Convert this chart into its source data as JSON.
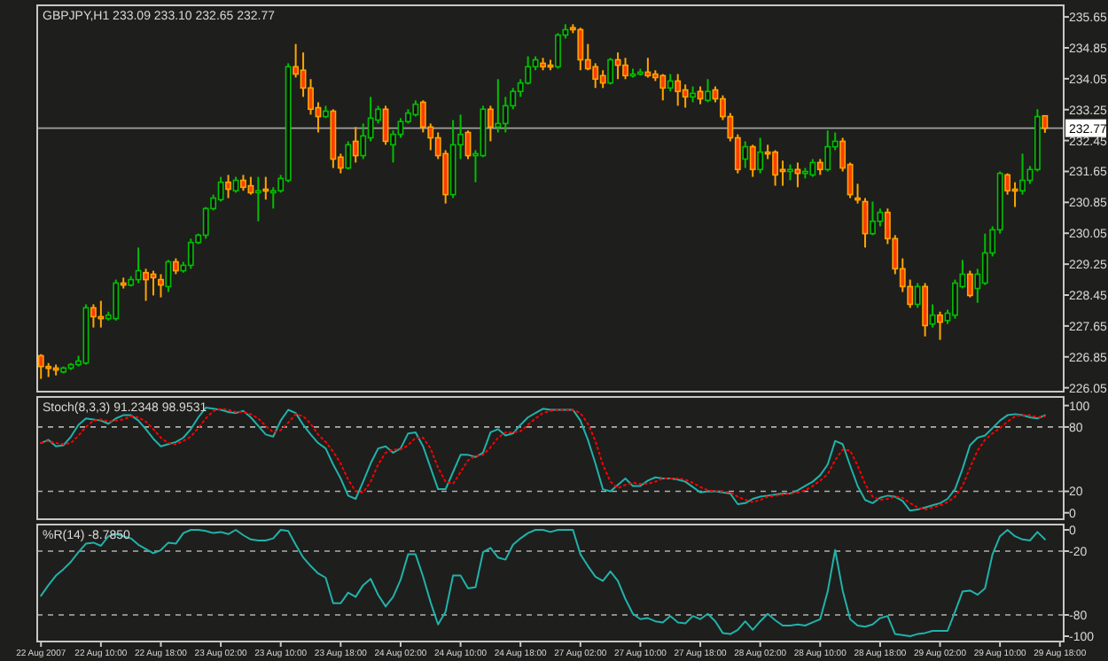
{
  "chart_data": [
    {
      "type": "candlestick",
      "title": "GBPJPY,H1 233.09 233.10 232.65 232.77",
      "categories": [
        null,
        null,
        null,
        null,
        null,
        null,
        null,
        null,
        null,
        null,
        null,
        null,
        null,
        null,
        null,
        null,
        null,
        null,
        null,
        null,
        null,
        null,
        null,
        null,
        null,
        null,
        null,
        null,
        null,
        null,
        null,
        null,
        null,
        null,
        null,
        null,
        null,
        null,
        null,
        null,
        null,
        null,
        null,
        null,
        null,
        null,
        null,
        null,
        null,
        null,
        null,
        null,
        null,
        null,
        null,
        null,
        null,
        null,
        null,
        null,
        null,
        null,
        null,
        null,
        null,
        null,
        null,
        null,
        null,
        null,
        null,
        null,
        null,
        null,
        null,
        null,
        null,
        null,
        null,
        null,
        null,
        null,
        null,
        null,
        null,
        null,
        null,
        null,
        null,
        null,
        null,
        null,
        null,
        null,
        null,
        null,
        null,
        null,
        null,
        null,
        null,
        null,
        null,
        null,
        null,
        null,
        null,
        null,
        null,
        null,
        null,
        null,
        null,
        null,
        null,
        null,
        null,
        null,
        null,
        null,
        null,
        null,
        null,
        null,
        null,
        null,
        null,
        null,
        null,
        null,
        null,
        null,
        null,
        null,
        null,
        null,
        null
      ],
      "ohlc": [
        [
          226.88,
          226.92,
          226.28,
          226.6
        ],
        [
          226.6,
          226.69,
          226.33,
          226.56
        ],
        [
          226.56,
          226.65,
          226.37,
          226.51
        ],
        [
          226.46,
          226.6,
          226.42,
          226.56
        ],
        [
          226.56,
          226.69,
          226.51,
          226.65
        ],
        [
          226.65,
          226.88,
          226.6,
          226.74
        ],
        [
          226.69,
          228.21,
          226.65,
          228.12
        ],
        [
          228.12,
          228.21,
          227.61,
          227.89
        ],
        [
          227.89,
          228.3,
          227.61,
          227.84
        ],
        [
          227.84,
          228.02,
          227.79,
          227.93
        ],
        [
          227.84,
          228.85,
          227.79,
          228.76
        ],
        [
          228.76,
          228.9,
          228.62,
          228.71
        ],
        [
          228.71,
          228.94,
          228.67,
          228.85
        ],
        [
          228.85,
          229.68,
          228.76,
          229.08
        ],
        [
          229.03,
          229.13,
          228.3,
          228.85
        ],
        [
          228.99,
          229.08,
          228.44,
          228.9
        ],
        [
          228.85,
          228.99,
          228.39,
          228.71
        ],
        [
          228.67,
          229.36,
          228.53,
          229.31
        ],
        [
          229.31,
          229.4,
          228.99,
          229.08
        ],
        [
          229.08,
          229.31,
          229.03,
          229.22
        ],
        [
          229.22,
          229.91,
          229.13,
          229.81
        ],
        [
          229.81,
          230.04,
          229.77,
          230.0
        ],
        [
          230.0,
          230.73,
          229.91,
          230.69
        ],
        [
          230.69,
          231.05,
          230.64,
          230.96
        ],
        [
          230.92,
          231.51,
          230.87,
          231.37
        ],
        [
          231.37,
          231.56,
          230.96,
          231.19
        ],
        [
          231.15,
          231.51,
          231.1,
          231.42
        ],
        [
          231.42,
          231.56,
          231.15,
          231.24
        ],
        [
          231.28,
          231.51,
          231.05,
          231.1
        ],
        [
          231.1,
          231.51,
          230.36,
          231.15
        ],
        [
          231.19,
          231.51,
          230.92,
          231.15
        ],
        [
          231.1,
          231.24,
          230.69,
          231.15
        ],
        [
          231.15,
          231.56,
          231.1,
          231.47
        ],
        [
          231.42,
          234.45,
          231.37,
          234.36
        ],
        [
          234.36,
          234.95,
          234.08,
          234.17
        ],
        [
          234.27,
          234.73,
          233.58,
          233.81
        ],
        [
          233.81,
          234.04,
          233.12,
          233.26
        ],
        [
          233.3,
          233.44,
          232.66,
          233.07
        ],
        [
          233.07,
          233.35,
          233.03,
          233.21
        ],
        [
          233.21,
          233.26,
          231.74,
          231.97
        ],
        [
          232.02,
          232.11,
          231.6,
          231.74
        ],
        [
          231.74,
          232.43,
          231.7,
          232.34
        ],
        [
          232.43,
          232.8,
          231.88,
          232.06
        ],
        [
          232.06,
          232.89,
          231.97,
          232.57
        ],
        [
          232.52,
          233.58,
          232.43,
          233.03
        ],
        [
          232.98,
          233.35,
          232.89,
          233.26
        ],
        [
          233.26,
          233.35,
          232.34,
          232.43
        ],
        [
          232.34,
          232.71,
          231.88,
          232.61
        ],
        [
          232.61,
          233.03,
          232.52,
          232.94
        ],
        [
          232.94,
          233.26,
          232.89,
          233.16
        ],
        [
          233.12,
          233.49,
          233.07,
          233.39
        ],
        [
          233.44,
          233.49,
          232.66,
          232.8
        ],
        [
          232.8,
          232.89,
          232.2,
          232.52
        ],
        [
          232.52,
          232.66,
          231.97,
          232.06
        ],
        [
          232.11,
          232.2,
          230.82,
          231.05
        ],
        [
          231.05,
          232.98,
          230.96,
          232.34
        ],
        [
          232.34,
          233.12,
          231.97,
          232.61
        ],
        [
          232.66,
          232.71,
          231.97,
          232.06
        ],
        [
          232.06,
          232.2,
          231.37,
          232.11
        ],
        [
          232.06,
          233.35,
          232.02,
          233.26
        ],
        [
          233.26,
          233.35,
          232.43,
          232.8
        ],
        [
          232.8,
          234.04,
          232.66,
          232.89
        ],
        [
          232.89,
          233.58,
          232.66,
          233.35
        ],
        [
          233.35,
          233.81,
          233.26,
          233.72
        ],
        [
          233.72,
          234.04,
          233.58,
          233.94
        ],
        [
          233.94,
          234.63,
          233.9,
          234.36
        ],
        [
          234.36,
          234.63,
          234.27,
          234.54
        ],
        [
          234.45,
          234.59,
          234.27,
          234.36
        ],
        [
          234.4,
          234.54,
          234.27,
          234.36
        ],
        [
          234.36,
          235.23,
          234.31,
          235.18
        ],
        [
          235.18,
          235.46,
          235.09,
          235.32
        ],
        [
          235.37,
          235.46,
          235.23,
          235.32
        ],
        [
          235.32,
          235.37,
          234.27,
          234.54
        ],
        [
          234.54,
          234.95,
          234.27,
          234.31
        ],
        [
          234.36,
          234.45,
          233.81,
          234.04
        ],
        [
          234.13,
          234.27,
          233.81,
          233.94
        ],
        [
          233.94,
          234.59,
          233.9,
          234.54
        ],
        [
          234.54,
          234.73,
          234.04,
          234.4
        ],
        [
          234.4,
          234.59,
          234.04,
          234.13
        ],
        [
          234.13,
          234.31,
          234.08,
          234.17
        ],
        [
          234.17,
          234.31,
          234.13,
          234.22
        ],
        [
          234.22,
          234.59,
          234.08,
          234.13
        ],
        [
          234.17,
          234.27,
          233.99,
          234.08
        ],
        [
          234.13,
          234.17,
          233.49,
          233.81
        ],
        [
          233.81,
          234.17,
          233.72,
          233.99
        ],
        [
          233.99,
          234.17,
          233.35,
          233.72
        ],
        [
          233.76,
          233.9,
          233.3,
          233.58
        ],
        [
          233.58,
          233.85,
          233.44,
          233.67
        ],
        [
          233.72,
          233.85,
          233.39,
          233.53
        ],
        [
          233.49,
          234.04,
          233.44,
          233.72
        ],
        [
          233.76,
          233.85,
          233.44,
          233.53
        ],
        [
          233.53,
          233.62,
          232.98,
          233.07
        ],
        [
          233.07,
          233.16,
          232.43,
          232.52
        ],
        [
          232.52,
          232.61,
          231.6,
          231.7
        ],
        [
          231.97,
          232.43,
          231.74,
          232.29
        ],
        [
          232.29,
          232.34,
          231.51,
          231.7
        ],
        [
          231.7,
          232.52,
          231.6,
          232.15
        ],
        [
          232.15,
          232.34,
          231.97,
          232.11
        ],
        [
          232.15,
          232.2,
          231.28,
          231.56
        ],
        [
          231.7,
          231.93,
          231.28,
          231.65
        ],
        [
          231.65,
          231.83,
          231.42,
          231.7
        ],
        [
          231.7,
          231.88,
          231.24,
          231.6
        ],
        [
          231.6,
          231.74,
          231.47,
          231.65
        ],
        [
          231.56,
          231.97,
          231.51,
          231.88
        ],
        [
          231.88,
          231.97,
          231.56,
          231.7
        ],
        [
          231.7,
          232.71,
          231.65,
          232.29
        ],
        [
          232.29,
          232.66,
          232.2,
          232.43
        ],
        [
          232.43,
          232.52,
          231.65,
          231.74
        ],
        [
          231.83,
          231.88,
          230.96,
          231.05
        ],
        [
          230.96,
          231.33,
          230.82,
          230.92
        ],
        [
          230.87,
          230.96,
          229.68,
          230.04
        ],
        [
          230.04,
          230.87,
          230.0,
          230.36
        ],
        [
          230.36,
          230.69,
          230.23,
          230.59
        ],
        [
          230.59,
          230.69,
          229.77,
          229.91
        ],
        [
          229.91,
          230.0,
          228.99,
          229.13
        ],
        [
          229.13,
          229.4,
          228.53,
          228.67
        ],
        [
          228.67,
          228.85,
          228.12,
          228.21
        ],
        [
          228.21,
          228.76,
          228.12,
          228.67
        ],
        [
          228.67,
          228.76,
          227.38,
          227.66
        ],
        [
          227.7,
          228.21,
          227.61,
          227.93
        ],
        [
          227.93,
          228.02,
          227.29,
          227.75
        ],
        [
          227.79,
          228.07,
          227.7,
          227.98
        ],
        [
          227.93,
          228.85,
          227.84,
          228.76
        ],
        [
          228.67,
          229.36,
          228.62,
          228.99
        ],
        [
          228.99,
          229.08,
          228.39,
          228.44
        ],
        [
          228.62,
          229.13,
          228.25,
          228.99
        ],
        [
          228.76,
          230.04,
          228.71,
          229.54
        ],
        [
          229.54,
          230.23,
          229.45,
          230.14
        ],
        [
          230.14,
          231.65,
          230.04,
          231.6
        ],
        [
          231.56,
          231.6,
          231.05,
          231.15
        ],
        [
          231.19,
          231.37,
          230.73,
          231.15
        ],
        [
          231.15,
          232.11,
          231.05,
          231.42
        ],
        [
          231.42,
          231.79,
          231.33,
          231.7
        ],
        [
          231.7,
          233.26,
          231.65,
          233.07
        ],
        [
          233.09,
          233.1,
          232.65,
          232.77
        ],
        null,
        null
      ],
      "ylim": [
        225.95,
        235.95
      ],
      "yticks": [
        235.65,
        234.85,
        234.05,
        233.25,
        232.45,
        231.65,
        230.85,
        230.05,
        229.25,
        228.45,
        227.65,
        226.85,
        226.05
      ],
      "ref_lines": [
        {
          "axis": "y",
          "value": 232.77,
          "label": "232.77",
          "color": "#a0a0a0"
        }
      ],
      "tick_labels": "y"
    },
    {
      "type": "line",
      "title": "Stoch(8,3,3) 91.2348 98.9531",
      "categories": [
        null,
        null,
        null,
        null,
        null,
        null,
        null,
        null,
        null,
        null,
        null,
        null,
        null,
        null,
        null,
        null,
        null,
        null,
        null,
        null,
        null,
        null,
        null,
        null,
        null,
        null,
        null,
        null,
        null,
        null,
        null,
        null,
        null,
        null,
        null,
        null,
        null,
        null,
        null,
        null,
        null,
        null,
        null,
        null,
        null,
        null,
        null,
        null,
        null,
        null,
        null,
        null,
        null,
        null,
        null,
        null,
        null,
        null,
        null,
        null,
        null,
        null,
        null,
        null,
        null,
        null,
        null,
        null,
        null,
        null,
        null,
        null,
        null,
        null,
        null,
        null,
        null,
        null,
        null,
        null,
        null,
        null,
        null,
        null,
        null,
        null,
        null,
        null,
        null,
        null,
        null,
        null,
        null,
        null,
        null,
        null,
        null,
        null,
        null,
        null,
        null,
        null,
        null,
        null,
        null,
        null,
        null,
        null,
        null,
        null,
        null,
        null,
        null,
        null,
        null,
        null,
        null,
        null,
        null,
        null,
        null,
        null,
        null,
        null,
        null,
        null,
        null,
        null,
        null,
        null,
        null,
        null,
        null,
        null,
        null,
        null,
        null
      ],
      "series": [
        {
          "color": "#20b2aa",
          "values": [
            65,
            68,
            62,
            63,
            71,
            82,
            88,
            87,
            86,
            83,
            88,
            91,
            91,
            86,
            78,
            69,
            62,
            64,
            66,
            70,
            78,
            89,
            98,
            97,
            96,
            94,
            93,
            95,
            89,
            81,
            73,
            71,
            86,
            96,
            93,
            82,
            73,
            65,
            60,
            45,
            32,
            16,
            13,
            29,
            46,
            60,
            62,
            56,
            60,
            74,
            75,
            62,
            42,
            22,
            22,
            38,
            54,
            54,
            52,
            56,
            75,
            78,
            72,
            74,
            82,
            89,
            93,
            97,
            96,
            96,
            96,
            96,
            86,
            68,
            46,
            22,
            20,
            26,
            32,
            25,
            25,
            30,
            33,
            32,
            32,
            31,
            29,
            24,
            19,
            20,
            20,
            19,
            18,
            8,
            9,
            13,
            15,
            16,
            17,
            18,
            18,
            21,
            25,
            29,
            35,
            45,
            67,
            64,
            44,
            25,
            12,
            9,
            14,
            16,
            15,
            11,
            2,
            3,
            5,
            7,
            9,
            13,
            22,
            41,
            63,
            70,
            72,
            79,
            86,
            91,
            92,
            91,
            89,
            88,
            91,
            null,
            null
          ]
        },
        {
          "color": "#ff0000",
          "line_style": "dotted",
          "values": [
            65,
            67,
            65,
            64,
            65,
            72,
            80,
            86,
            87,
            85,
            86,
            87,
            90,
            89,
            85,
            78,
            70,
            65,
            64,
            67,
            71,
            79,
            88,
            95,
            97,
            96,
            94,
            94,
            92,
            88,
            81,
            75,
            77,
            84,
            92,
            90,
            83,
            73,
            66,
            57,
            46,
            31,
            20,
            19,
            29,
            45,
            56,
            59,
            59,
            63,
            70,
            70,
            60,
            42,
            29,
            27,
            38,
            49,
            53,
            54,
            61,
            70,
            75,
            75,
            76,
            82,
            88,
            93,
            95,
            96,
            96,
            96,
            93,
            83,
            67,
            45,
            29,
            23,
            26,
            28,
            27,
            27,
            29,
            32,
            32,
            32,
            31,
            28,
            24,
            21,
            20,
            20,
            19,
            15,
            12,
            10,
            12,
            15,
            16,
            17,
            18,
            19,
            21,
            25,
            30,
            36,
            49,
            59,
            58,
            44,
            27,
            15,
            12,
            13,
            15,
            14,
            9,
            5,
            3,
            5,
            7,
            10,
            15,
            25,
            42,
            58,
            68,
            74,
            79,
            85,
            90,
            91,
            91,
            89,
            90,
            null,
            null
          ]
        }
      ],
      "ylim": [
        -6,
        108
      ],
      "yticks": [
        100,
        80,
        20,
        0
      ],
      "ref_lines": [
        {
          "axis": "y",
          "value": 80,
          "color": "#b0b0b0",
          "line_style": "dashed"
        },
        {
          "axis": "y",
          "value": 20,
          "color": "#b0b0b0",
          "line_style": "dashed"
        }
      ],
      "tick_labels": "y"
    },
    {
      "type": "line",
      "title": "%R(14) -8.7850",
      "categories": [
        "22 Aug 2007",
        null,
        null,
        null,
        null,
        null,
        null,
        null,
        "22 Aug 10:00",
        null,
        null,
        null,
        null,
        null,
        null,
        null,
        "22 Aug 18:00",
        null,
        null,
        null,
        null,
        null,
        null,
        null,
        "23 Aug 02:00",
        null,
        null,
        null,
        null,
        null,
        null,
        null,
        "23 Aug 10:00",
        null,
        null,
        null,
        null,
        null,
        null,
        null,
        "23 Aug 18:00",
        null,
        null,
        null,
        null,
        null,
        null,
        null,
        "24 Aug 02:00",
        null,
        null,
        null,
        null,
        null,
        null,
        null,
        "24 Aug 10:00",
        null,
        null,
        null,
        null,
        null,
        null,
        null,
        "24 Aug 18:00",
        null,
        null,
        null,
        null,
        null,
        null,
        null,
        "27 Aug 02:00",
        null,
        null,
        null,
        null,
        null,
        null,
        null,
        "27 Aug 10:00",
        null,
        null,
        null,
        null,
        null,
        null,
        null,
        "27 Aug 18:00",
        null,
        null,
        null,
        null,
        null,
        null,
        null,
        "28 Aug 02:00",
        null,
        null,
        null,
        null,
        null,
        null,
        null,
        "28 Aug 10:00",
        null,
        null,
        null,
        null,
        null,
        null,
        null,
        "28 Aug 18:00",
        null,
        null,
        null,
        null,
        null,
        null,
        null,
        "29 Aug 02:00",
        null,
        null,
        null,
        null,
        null,
        null,
        null,
        "29 Aug 10:00",
        null,
        null,
        null,
        null,
        null,
        null,
        null,
        "29 Aug 18:00"
      ],
      "series": [
        {
          "color": "#20b2aa",
          "values": [
            -62,
            -52,
            -43,
            -37,
            -30,
            -21,
            -13,
            -12,
            -15,
            -6,
            -4,
            -6,
            -8,
            -14,
            -18,
            -22,
            -19,
            -12,
            -13,
            -3,
            0,
            0,
            -1,
            -3,
            -2,
            -4,
            0,
            -5,
            -9,
            -10,
            -10,
            -8,
            0,
            -1,
            -14,
            -26,
            -34,
            -41,
            -45,
            -69,
            -69,
            -59,
            -63,
            -52,
            -46,
            -61,
            -72,
            -63,
            -47,
            -23,
            -23,
            -44,
            -68,
            -89,
            -77,
            -43,
            -43,
            -55,
            -54,
            -21,
            -17,
            -26,
            -28,
            -14,
            -8,
            -3,
            0,
            0,
            -2,
            0,
            0,
            0,
            -23,
            -34,
            -44,
            -48,
            -39,
            -48,
            -65,
            -79,
            -84,
            -83,
            -86,
            -87,
            -81,
            -87,
            -88,
            -81,
            -84,
            -79,
            -86,
            -97,
            -98,
            -94,
            -86,
            -94,
            -86,
            -79,
            -85,
            -90,
            -90,
            -89,
            -90,
            -87,
            -84,
            -58,
            -19,
            -57,
            -84,
            -90,
            -91,
            -89,
            -83,
            -81,
            -98,
            -99,
            -100,
            -98,
            -97,
            -95,
            -95,
            -95,
            -77,
            -58,
            -57,
            -61,
            -55,
            -23,
            -6,
            0,
            -6,
            -9,
            -10,
            -2,
            -9,
            null,
            null
          ]
        }
      ],
      "ylim": [
        -105,
        5
      ],
      "yticks": [
        0,
        -20,
        -80,
        -100
      ],
      "ref_lines": [
        {
          "axis": "y",
          "value": -20,
          "color": "#b0b0b0",
          "line_style": "dashed"
        },
        {
          "axis": "y",
          "value": -80,
          "color": "#b0b0b0",
          "line_style": "dashed"
        }
      ]
    }
  ]
}
